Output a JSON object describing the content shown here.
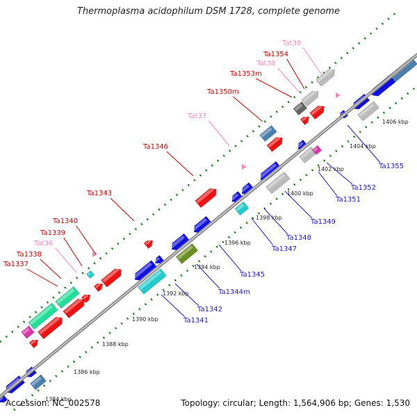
{
  "title": "Thermoplasma acidophilum DSM 1728, complete genome",
  "footer": {
    "accession_label": "Accession:",
    "accession": "NC_002578",
    "topology_text": "Topology: circular; Length: 1,564,906 bp; Genes: 1,530"
  },
  "colors": {
    "backbone": "#8c8c8c",
    "tick_dots": "#1f7f1f",
    "label_forward": "#cc0000",
    "label_rna": "#ff88bb",
    "label_reverse": "#1a1acc",
    "tick_label": "#222222"
  },
  "scale_labels": [
    {
      "text": "1384 kbp"
    },
    {
      "text": "1386 kbp"
    },
    {
      "text": "1388 kbp"
    },
    {
      "text": "1390 kbp"
    },
    {
      "text": "1392 kbp"
    },
    {
      "text": "1394 kbp"
    },
    {
      "text": "1396 kbp"
    },
    {
      "text": "1398 kbp"
    },
    {
      "text": "1400 kbp"
    },
    {
      "text": "1402 kbp"
    },
    {
      "text": "1404 kbp"
    },
    {
      "text": "1406 kbp"
    }
  ],
  "upper_labels": [
    {
      "text": "Tat39",
      "kind": "rna"
    },
    {
      "text": "Ta1354",
      "kind": "forward"
    },
    {
      "text": "Tat38",
      "kind": "rna"
    },
    {
      "text": "Ta1353m",
      "kind": "forward"
    },
    {
      "text": "Ta1350m",
      "kind": "forward"
    },
    {
      "text": "Tat37",
      "kind": "rna"
    },
    {
      "text": "Ta1346",
      "kind": "forward"
    },
    {
      "text": "Ta1343",
      "kind": "forward"
    },
    {
      "text": "Ta1340",
      "kind": "forward"
    },
    {
      "text": "Ta1339",
      "kind": "forward"
    },
    {
      "text": "Tat36",
      "kind": "rna"
    },
    {
      "text": "Ta1338",
      "kind": "forward"
    },
    {
      "text": "Ta1337",
      "kind": "forward"
    }
  ],
  "lower_labels": [
    {
      "text": "Ta1355"
    },
    {
      "text": "Ta1352"
    },
    {
      "text": "Ta1351"
    },
    {
      "text": "Ta1349"
    },
    {
      "text": "Ta1348"
    },
    {
      "text": "Ta1347"
    },
    {
      "text": "Ta1345"
    },
    {
      "text": "Ta1344m"
    },
    {
      "text": "Ta1342"
    },
    {
      "text": "Ta1341"
    }
  ],
  "feature_colors": {
    "forward_cds": "#ee1111",
    "reverse_cds": "#1111dd",
    "gray": "#bbbbbb",
    "dark_gray": "#666666",
    "steel": "#4a7fae",
    "cyan": "#22cccc",
    "teal_green": "#22dd99",
    "olive": "#6b8e23",
    "magenta": "#dd33aa",
    "rna_marker": "#ff88bb"
  }
}
